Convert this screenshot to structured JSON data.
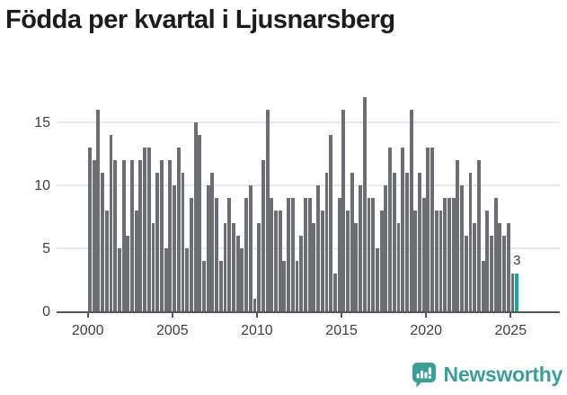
{
  "title": "Födda per kvartal i Ljusnarsberg",
  "chart_data": {
    "type": "bar",
    "title": "Födda per kvartal i Ljusnarsberg",
    "x_unit": "quarter",
    "x_start": "2000 Q1",
    "x_end": "2025 Q2",
    "x_tick_labels": [
      "2000",
      "2005",
      "2010",
      "2015",
      "2020",
      "2025"
    ],
    "y_tick_labels": [
      "0",
      "5",
      "10",
      "15"
    ],
    "y_tick_values": [
      0,
      5,
      10,
      15
    ],
    "grid_values": [
      5,
      10,
      15
    ],
    "ylim": [
      0,
      17
    ],
    "grid": true,
    "legend": false,
    "bar_color": "#6d6d74",
    "series": [
      {
        "name": "Födda per kvartal",
        "values": [
          13,
          12,
          16,
          11,
          8,
          14,
          12,
          5,
          12,
          6,
          12,
          8,
          12,
          13,
          13,
          7,
          11,
          12,
          5,
          12,
          10,
          13,
          11,
          5,
          9,
          15,
          14,
          4,
          10,
          11,
          9,
          4,
          7,
          9,
          7,
          6,
          5,
          9,
          10,
          1,
          7,
          12,
          16,
          9,
          8,
          8,
          4,
          9,
          9,
          4,
          6,
          9,
          9,
          7,
          10,
          8,
          11,
          14,
          3,
          9,
          16,
          8,
          11,
          7,
          10,
          17,
          9,
          9,
          5,
          8,
          10,
          13,
          11,
          7,
          13,
          11,
          16,
          8,
          11,
          9,
          13,
          13,
          8,
          8,
          9,
          9,
          9,
          12,
          10,
          6,
          11,
          7,
          12,
          4,
          8,
          6,
          9,
          7,
          6,
          7,
          3,
          3
        ]
      }
    ],
    "highlight": {
      "index": 101,
      "value": 3,
      "value_label": "3",
      "color": "#12a8a1"
    }
  },
  "footer": {
    "brand": "Newsworthy"
  },
  "colors": {
    "bar": "#6d6d74",
    "highlight": "#12a8a1",
    "axis": "#55555c",
    "grid": "#e9e9e9",
    "text": "#3e3e3e",
    "title": "#1c1c1c",
    "brand": "#3c9e99"
  }
}
